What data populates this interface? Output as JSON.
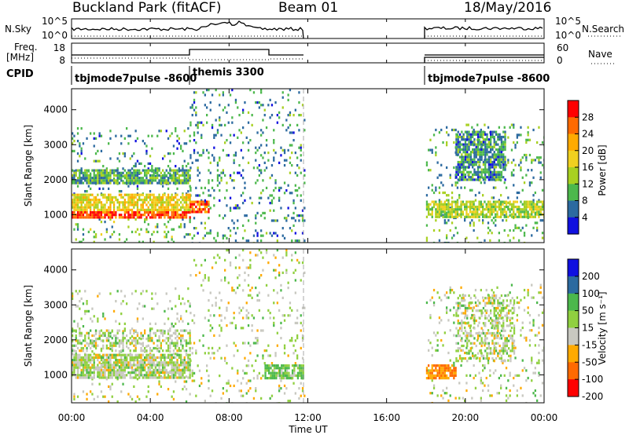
{
  "header": {
    "station": "Buckland Park (fitACF)",
    "beam": "Beam 01",
    "date": "18/May/2016"
  },
  "noise_panel": {
    "left_label": "N.Sky",
    "right_label": "N.Search",
    "left_ticks": [
      "10^5",
      "10^0"
    ],
    "right_ticks": [
      "10^5",
      "10^0"
    ]
  },
  "freq_panel": {
    "left_label_line1": "Freq.",
    "left_label_line2": "[MHz]",
    "left_ticks": [
      "18",
      "8"
    ],
    "right_label": "Nave",
    "right_ticks": [
      "60",
      "0"
    ]
  },
  "cpid_panel": {
    "label": "CPID",
    "segments": [
      {
        "label": "tbjmode7pulse -8600",
        "start_hour": 0,
        "end_hour": 6
      },
      {
        "label": "themis 3300",
        "start_hour": 6,
        "end_hour": 11.8
      },
      {
        "label": "tbjmode7pulse -8600",
        "start_hour": 18,
        "end_hour": 24
      }
    ]
  },
  "power_panel": {
    "ylabel": "Slant Range [km]",
    "colorbar_label": "Power [dB]",
    "colorbar_ticks": [
      "28",
      "24",
      "20",
      "16",
      "12",
      "8",
      "4"
    ],
    "colors": [
      "#ff0000",
      "#ff6a00",
      "#ffaa00",
      "#f0d020",
      "#a8d020",
      "#4cb84c",
      "#2c6aa0",
      "#1010e0"
    ]
  },
  "velocity_panel": {
    "ylabel": "Slant Range [km]",
    "colorbar_label": "Velocity [m s⁻¹]",
    "colorbar_ticks": [
      "200",
      "100",
      "50",
      "15",
      "-15",
      "-50",
      "-100",
      "-200"
    ],
    "colors": [
      "#1010e0",
      "#2c6aa0",
      "#4cb84c",
      "#90d040",
      "#c8c8c0",
      "#ffaa00",
      "#ff6a00",
      "#ff0000"
    ]
  },
  "axes": {
    "y_ticks": [
      "4000",
      "3000",
      "2000",
      "1000"
    ],
    "x_ticks": [
      "00:00",
      "04:00",
      "08:00",
      "12:00",
      "16:00",
      "20:00",
      "00:00"
    ],
    "xlabel": "Time UT"
  },
  "chart_data": {
    "type": "heatmap",
    "x_range_hours": [
      0,
      24
    ],
    "y_range_km": [
      200,
      4600
    ],
    "data_gap_hours": [
      11.8,
      18
    ],
    "bands_power": [
      {
        "start": 0,
        "end": 6,
        "range_km": [
          900,
          1100
        ],
        "power_db": 28
      },
      {
        "start": 0,
        "end": 6,
        "range_km": [
          1100,
          1600
        ],
        "power_db": 18
      },
      {
        "start": 0,
        "end": 6,
        "range_km": [
          1900,
          2300
        ],
        "power_db": 10
      },
      {
        "start": 6,
        "end": 7,
        "range_km": [
          1100,
          1400
        ],
        "power_db": 26
      },
      {
        "start": 18,
        "end": 24,
        "range_km": [
          900,
          1400
        ],
        "power_db": 14
      },
      {
        "start": 19.5,
        "end": 22,
        "range_km": [
          2000,
          3400
        ],
        "power_db": 8
      }
    ],
    "bands_velocity": [
      {
        "start": 0,
        "end": 6,
        "range_km": [
          900,
          1600
        ],
        "velocity": 0
      },
      {
        "start": 18,
        "end": 19.5,
        "range_km": [
          900,
          1300
        ],
        "velocity": -80
      },
      {
        "start": 9.8,
        "end": 11.8,
        "range_km": [
          900,
          1300
        ],
        "velocity": 30
      }
    ]
  }
}
